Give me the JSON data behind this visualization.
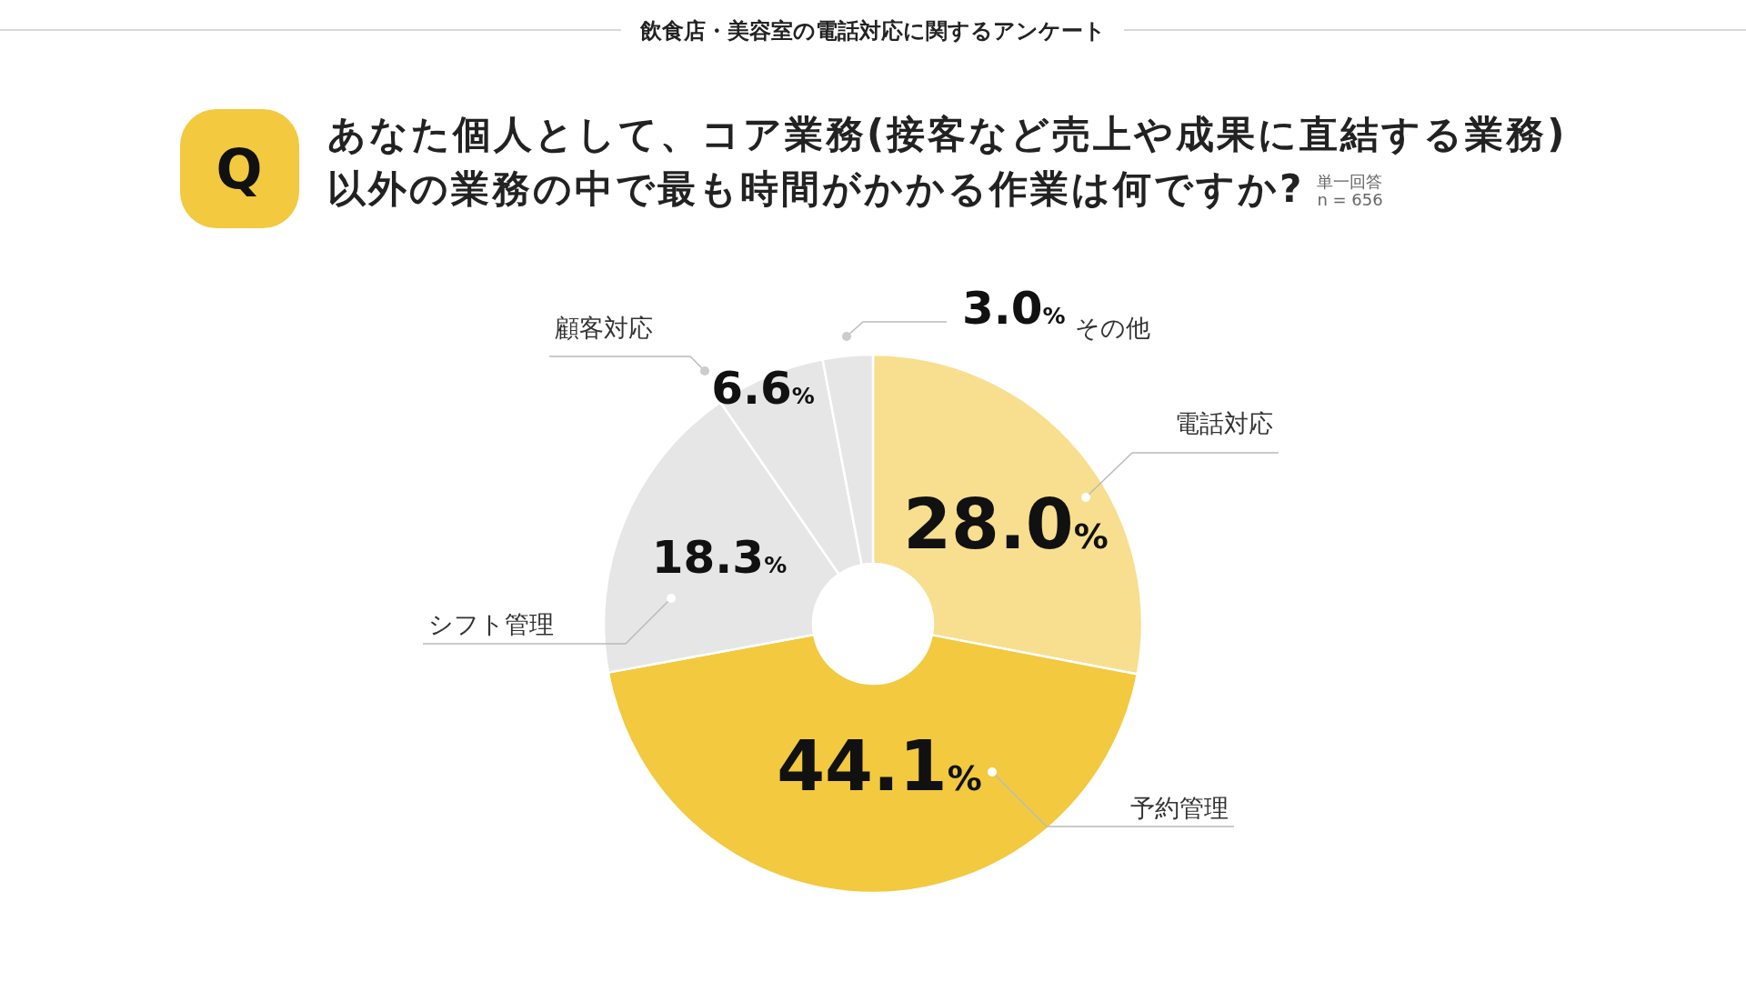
{
  "chart_data": {
    "type": "donut",
    "title": "飲食店・美容室の電話対応に関するアンケート",
    "subtitle": "あなた個人として、コア業務(接客など売上や成果に直結する業務)以外の業務の中で最も時間がかかる作業は何ですか?",
    "annotations": [
      "Q",
      "単一回答",
      "n = 656"
    ],
    "categories": [
      "電話対応",
      "予約管理",
      "シフト管理",
      "顧客対応",
      "その他"
    ],
    "values": [
      28.0,
      44.1,
      18.3,
      6.6,
      3.0
    ],
    "value_labels": [
      "28.0%",
      "44.1%",
      "18.3%",
      "6.6%",
      "3.0%"
    ],
    "colors": [
      "#f7df8f",
      "#f2c93f",
      "#e6e6e6",
      "#e6e6e6",
      "#e6e6e6"
    ]
  }
}
